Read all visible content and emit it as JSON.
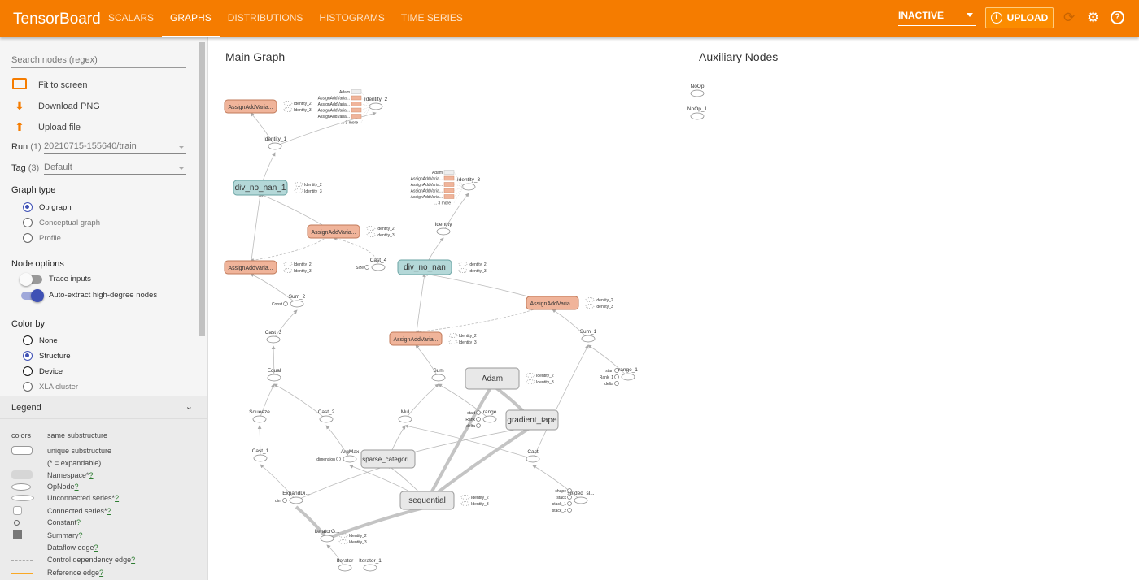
{
  "app": {
    "title": "TensorBoard",
    "tabs": [
      {
        "label": "Scalars"
      },
      {
        "label": "Graphs",
        "active": true
      },
      {
        "label": "Distributions"
      },
      {
        "label": "Histograms"
      },
      {
        "label": "Time Series"
      }
    ],
    "run_state": "INACTIVE",
    "upload_label": "UPLOAD",
    "icons": [
      "refresh-icon",
      "settings-icon",
      "help-icon"
    ],
    "accent": "#f57c00"
  },
  "sidebar": {
    "search_placeholder": "Search nodes (regex)",
    "actions": [
      {
        "label": "Fit to screen",
        "icon": "fit-screen-icon"
      },
      {
        "label": "Download PNG",
        "icon": "download-icon"
      },
      {
        "label": "Upload file",
        "icon": "upload-icon"
      }
    ],
    "run": {
      "label": "Run",
      "count": "(1)",
      "value": "20210715-155640/train"
    },
    "tag": {
      "label": "Tag",
      "count": "(3)",
      "value": "Default"
    },
    "graph_type": {
      "title": "Graph type",
      "options": [
        "Op graph",
        "Conceptual graph",
        "Profile"
      ],
      "selected": "Op graph"
    },
    "node_options": {
      "title": "Node options",
      "trace_inputs": {
        "label": "Trace inputs",
        "on": false
      },
      "auto_extract": {
        "label": "Auto-extract high-degree nodes",
        "on": true
      }
    },
    "color_by": {
      "title": "Color by",
      "options": [
        "None",
        "Structure",
        "Device",
        "XLA cluster"
      ],
      "selected": "Structure"
    },
    "legend": {
      "title": "Legend",
      "items": [
        {
          "sym": "colors",
          "label": "same substructure"
        },
        {
          "label": "unique substructure"
        },
        {
          "label": "(* = expandable)"
        },
        {
          "label": "Namespace*",
          "help": "?"
        },
        {
          "label": "OpNode",
          "help": "?"
        },
        {
          "label": "Unconnected series*",
          "help": "?"
        },
        {
          "label": "Connected series*",
          "help": "?"
        },
        {
          "label": "Constant",
          "help": "?"
        },
        {
          "label": "Summary",
          "help": "?"
        },
        {
          "label": "Dataflow edge",
          "help": "?"
        },
        {
          "label": "Control dependency edge",
          "help": "?"
        },
        {
          "label": "Reference edge",
          "help": "?"
        }
      ]
    }
  },
  "graph": {
    "main_title": "Main Graph",
    "aux_title": "Auxiliary Nodes",
    "colors": {
      "assign": "#f0b49a",
      "div": "#b4d8d8",
      "namespace": "#e8e8e8"
    },
    "nodes": [
      {
        "id": "aav1",
        "label": "AssignAddVaria...",
        "kind": "assign",
        "side": [
          "Identity_2",
          "Identity_3"
        ]
      },
      {
        "id": "id1",
        "label": "Identity_1",
        "kind": "op"
      },
      {
        "id": "id2",
        "label": "Identity_2",
        "kind": "op",
        "inputs": [
          "Adam",
          "AssignAddVaria...",
          "AssignAddVaria...",
          "AssignAddVaria...",
          "AssignAddVaria...",
          "... 3 more"
        ]
      },
      {
        "id": "dnn1",
        "label": "div_no_nan_1",
        "kind": "div",
        "side": [
          "Identity_2",
          "Identity_3"
        ]
      },
      {
        "id": "aav2",
        "label": "AssignAddVaria...",
        "kind": "assign",
        "side": [
          "Identity_2",
          "Identity_3"
        ]
      },
      {
        "id": "aav3",
        "label": "AssignAddVaria...",
        "kind": "assign",
        "side": [
          "Identity_2",
          "Identity_3"
        ]
      },
      {
        "id": "cast4",
        "label": "Cast_4",
        "kind": "op",
        "consts": [
          "Size"
        ]
      },
      {
        "id": "dnn",
        "label": "div_no_nan",
        "kind": "div",
        "side": [
          "Identity_2",
          "Identity_3"
        ]
      },
      {
        "id": "ident",
        "label": "Identity",
        "kind": "op"
      },
      {
        "id": "id3",
        "label": "Identity_3",
        "kind": "op",
        "inputs": [
          "Adam",
          "AssignAddVaria...",
          "AssignAddVaria...",
          "AssignAddVaria...",
          "AssignAddVaria...",
          "... 3 more"
        ]
      },
      {
        "id": "aav4",
        "label": "AssignAddVaria...",
        "kind": "assign",
        "side": [
          "Identity_2",
          "Identity_3"
        ]
      },
      {
        "id": "aav5",
        "label": "AssignAddVaria...",
        "kind": "assign",
        "side": [
          "Identity_2",
          "Identity_3"
        ]
      },
      {
        "id": "sum2",
        "label": "Sum_2",
        "kind": "op",
        "consts": [
          "Const"
        ]
      },
      {
        "id": "cast3",
        "label": "Cast_3",
        "kind": "op"
      },
      {
        "id": "equal",
        "label": "Equal",
        "kind": "op"
      },
      {
        "id": "sum",
        "label": "Sum",
        "kind": "op"
      },
      {
        "id": "sum1",
        "label": "Sum_1",
        "kind": "op"
      },
      {
        "id": "range1",
        "label": "range_1",
        "kind": "op",
        "consts": [
          "start",
          "Rank_1",
          "delta"
        ]
      },
      {
        "id": "adam",
        "label": "Adam",
        "kind": "ns",
        "side": [
          "Identity_2",
          "Identity_3"
        ]
      },
      {
        "id": "gt",
        "label": "gradient_tape",
        "kind": "ns"
      },
      {
        "id": "squeeze",
        "label": "Squeeze",
        "kind": "op"
      },
      {
        "id": "cast2",
        "label": "Cast_2",
        "kind": "op"
      },
      {
        "id": "mul",
        "label": "Mul",
        "kind": "op"
      },
      {
        "id": "range",
        "label": "range",
        "kind": "op",
        "consts": [
          "start",
          "Rank",
          "delta"
        ]
      },
      {
        "id": "cast1",
        "label": "Cast_1",
        "kind": "op"
      },
      {
        "id": "argmax",
        "label": "ArgMax",
        "kind": "op",
        "consts": [
          "dimension"
        ]
      },
      {
        "id": "sparse",
        "label": "sparse_categori...",
        "kind": "ns"
      },
      {
        "id": "cast",
        "label": "Cast",
        "kind": "op"
      },
      {
        "id": "expand",
        "label": "ExpandDi...",
        "kind": "op",
        "consts": [
          "dim"
        ]
      },
      {
        "id": "seq",
        "label": "sequential",
        "kind": "ns",
        "side": [
          "Identity_2",
          "Identity_3"
        ]
      },
      {
        "id": "strided",
        "label": "strided_sl...",
        "kind": "op",
        "consts": [
          "shape",
          "stack",
          "stack_1",
          "stack_2"
        ]
      },
      {
        "id": "iterg",
        "label": "IteratorG...",
        "kind": "op",
        "side": [
          "Identity_2",
          "Identity_3"
        ]
      },
      {
        "id": "iter",
        "label": "Iterator",
        "kind": "op"
      },
      {
        "id": "iter1",
        "label": "Iterator_1",
        "kind": "op"
      },
      {
        "id": "noop",
        "label": "NoOp",
        "kind": "op"
      },
      {
        "id": "noop1",
        "label": "NoOp_1",
        "kind": "op"
      }
    ],
    "edges": [
      [
        "id1",
        "aav1"
      ],
      [
        "id1",
        "id2"
      ],
      [
        "dnn1",
        "id1"
      ],
      [
        "aav3",
        "dnn1"
      ],
      [
        "aav2",
        "dnn1"
      ],
      [
        "cast4",
        "aav2",
        "dashed"
      ],
      [
        "sum2",
        "aav3"
      ],
      [
        "cast3",
        "sum2"
      ],
      [
        "equal",
        "cast3"
      ],
      [
        "squeeze",
        "equal"
      ],
      [
        "cast2",
        "equal"
      ],
      [
        "cast1",
        "squeeze"
      ],
      [
        "argmax",
        "cast2"
      ],
      [
        "expand",
        "cast1"
      ],
      [
        "iterg",
        "expand",
        "thick"
      ],
      [
        "iter",
        "iterg"
      ],
      [
        "iterg",
        "seq",
        "thick"
      ],
      [
        "seq",
        "argmax"
      ],
      [
        "seq",
        "sparse"
      ],
      [
        "expand",
        "sparse"
      ],
      [
        "sparse",
        "mul"
      ],
      [
        "sparse",
        "gt"
      ],
      [
        "cast",
        "mul"
      ],
      [
        "strided",
        "cast"
      ],
      [
        "seq",
        "adam",
        "thick"
      ],
      [
        "gt",
        "adam",
        "thick"
      ],
      [
        "seq",
        "gt",
        "thick"
      ],
      [
        "mul",
        "sum"
      ],
      [
        "range",
        "sum"
      ],
      [
        "sum",
        "aav5"
      ],
      [
        "aav5",
        "dnn"
      ],
      [
        "dnn",
        "ident"
      ],
      [
        "ident",
        "id3"
      ],
      [
        "aav4",
        "dnn"
      ],
      [
        "sum1",
        "aav4"
      ],
      [
        "range1",
        "sum1"
      ],
      [
        "cast",
        "sum1"
      ],
      [
        "aav4",
        "aav5",
        "dashed"
      ],
      [
        "aav2",
        "aav3",
        "dashed"
      ]
    ]
  }
}
